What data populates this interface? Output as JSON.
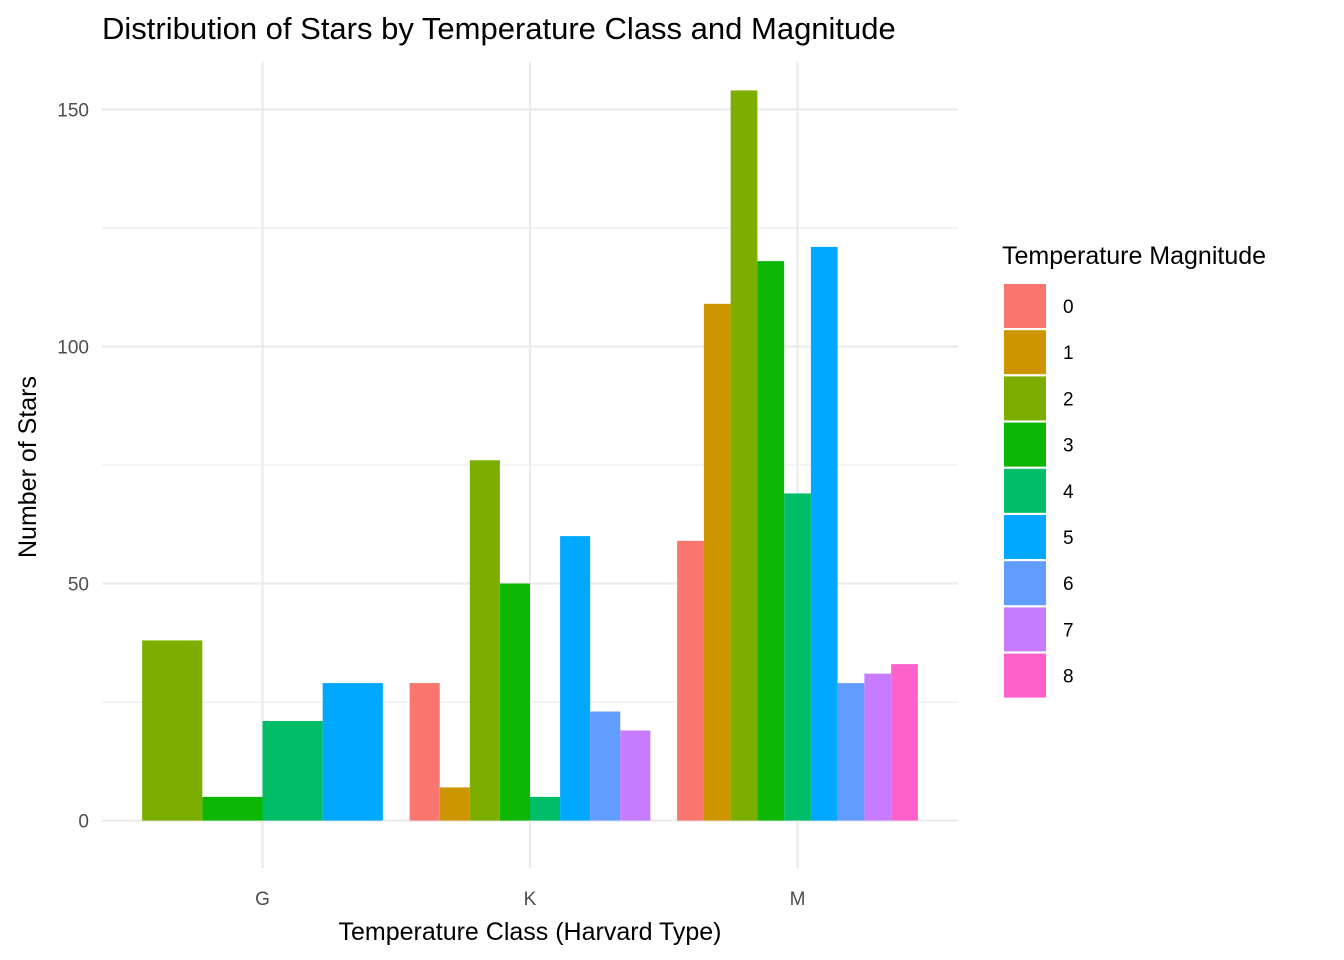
{
  "chart_data": {
    "type": "bar",
    "title": "Distribution of Stars by Temperature Class and Magnitude",
    "xlabel": "Temperature Class (Harvard Type)",
    "ylabel": "Number of Stars",
    "categories": [
      "G",
      "K",
      "M"
    ],
    "ylim": [
      -10,
      160
    ],
    "yticks": [
      0,
      50,
      100,
      150
    ],
    "grid": true,
    "legend": {
      "title": "Temperature Magnitude",
      "position": "right"
    },
    "series": [
      {
        "name": "0",
        "color": "#F8766D",
        "values": [
          null,
          29,
          59
        ]
      },
      {
        "name": "1",
        "color": "#CD9600",
        "values": [
          null,
          7,
          109
        ]
      },
      {
        "name": "2",
        "color": "#7CAE00",
        "values": [
          38,
          76,
          154
        ]
      },
      {
        "name": "3",
        "color": "#0CB702",
        "values": [
          5,
          50,
          118
        ]
      },
      {
        "name": "4",
        "color": "#00BE67",
        "values": [
          21,
          5,
          69
        ]
      },
      {
        "name": "5",
        "color": "#00A9FF",
        "values": [
          29,
          60,
          121
        ]
      },
      {
        "name": "6",
        "color": "#619CFF",
        "values": [
          null,
          23,
          29
        ]
      },
      {
        "name": "7",
        "color": "#C77CFF",
        "values": [
          null,
          19,
          31
        ]
      },
      {
        "name": "8",
        "color": "#FF61CC",
        "values": [
          null,
          null,
          33
        ]
      }
    ]
  }
}
